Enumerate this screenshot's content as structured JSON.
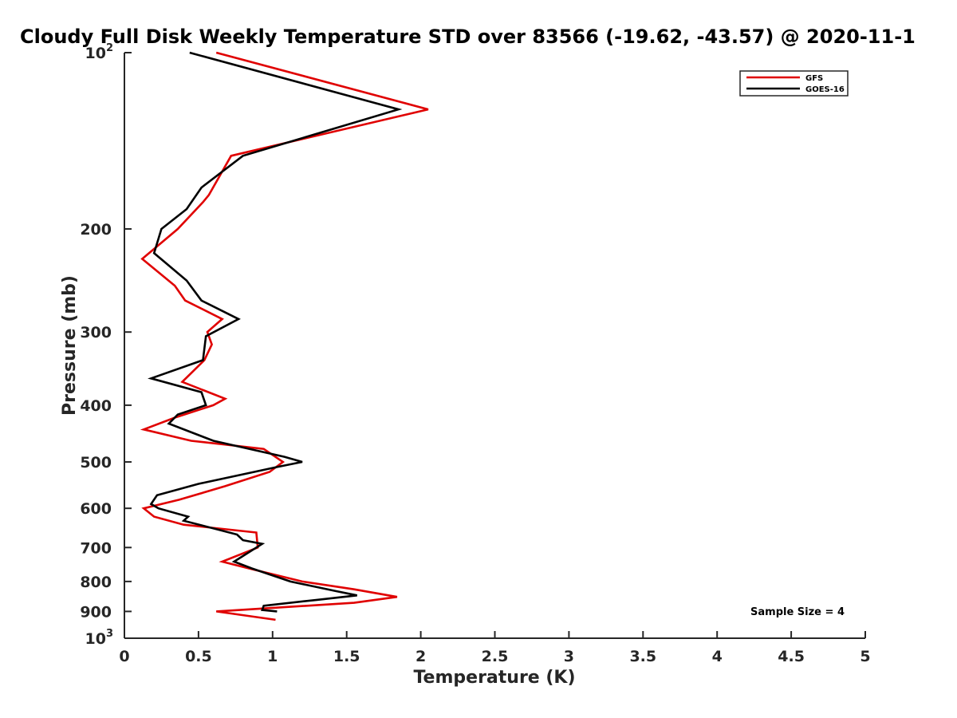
{
  "chart_data": {
    "type": "line",
    "title": "Cloudy Full Disk Weekly Temperature STD over 83566 (-19.62, -43.57) @ 2020-11-1",
    "xlabel": "Temperature (K)",
    "ylabel": "Pressure (mb)",
    "xlim": [
      0,
      5
    ],
    "ylim": [
      100,
      1000
    ],
    "y_scale": "log",
    "y_reversed": true,
    "grid": false,
    "legend_position": "top-right",
    "x_ticks": [
      "0",
      "0.5",
      "1",
      "1.5",
      "2",
      "2.5",
      "3",
      "3.5",
      "4",
      "4.5",
      "5"
    ],
    "y_ticks": [
      {
        "value": 100,
        "base": "10",
        "exp": "2"
      },
      {
        "value": 200,
        "label": "200"
      },
      {
        "value": 300,
        "label": "300"
      },
      {
        "value": 400,
        "label": "400"
      },
      {
        "value": 500,
        "label": "500"
      },
      {
        "value": 600,
        "label": "600"
      },
      {
        "value": 700,
        "label": "700"
      },
      {
        "value": 800,
        "label": "800"
      },
      {
        "value": 900,
        "label": "900"
      },
      {
        "value": 1000,
        "base": "10",
        "exp": "3"
      }
    ],
    "annotation": "Sample Size = 4",
    "series": [
      {
        "name": "GFS",
        "color": "#e00000",
        "points": [
          [
            0.62,
            100
          ],
          [
            2.05,
            125
          ],
          [
            0.72,
            150
          ],
          [
            0.57,
            175
          ],
          [
            0.53,
            180
          ],
          [
            0.36,
            200
          ],
          [
            0.12,
            225
          ],
          [
            0.34,
            250
          ],
          [
            0.41,
            265
          ],
          [
            0.66,
            285
          ],
          [
            0.56,
            300
          ],
          [
            0.59,
            315
          ],
          [
            0.54,
            335
          ],
          [
            0.39,
            365
          ],
          [
            0.68,
            390
          ],
          [
            0.6,
            400
          ],
          [
            0.34,
            420
          ],
          [
            0.13,
            440
          ],
          [
            0.45,
            460
          ],
          [
            0.94,
            475
          ],
          [
            1.07,
            500
          ],
          [
            0.98,
            520
          ],
          [
            0.68,
            550
          ],
          [
            0.37,
            580
          ],
          [
            0.13,
            600
          ],
          [
            0.2,
            620
          ],
          [
            0.4,
            640
          ],
          [
            0.89,
            660
          ],
          [
            0.9,
            700
          ],
          [
            0.66,
            740
          ],
          [
            0.84,
            760
          ],
          [
            1.2,
            800
          ],
          [
            1.55,
            825
          ],
          [
            1.84,
            850
          ],
          [
            1.55,
            870
          ],
          [
            0.62,
            900
          ],
          [
            1.02,
            930
          ]
        ]
      },
      {
        "name": "GOES-16",
        "color": "#000000",
        "points": [
          [
            0.44,
            100
          ],
          [
            1.85,
            125
          ],
          [
            0.8,
            150
          ],
          [
            0.52,
            170
          ],
          [
            0.42,
            185
          ],
          [
            0.25,
            200
          ],
          [
            0.2,
            220
          ],
          [
            0.42,
            245
          ],
          [
            0.52,
            265
          ],
          [
            0.77,
            285
          ],
          [
            0.55,
            305
          ],
          [
            0.53,
            335
          ],
          [
            0.18,
            360
          ],
          [
            0.52,
            380
          ],
          [
            0.55,
            400
          ],
          [
            0.36,
            415
          ],
          [
            0.3,
            430
          ],
          [
            0.6,
            460
          ],
          [
            1.08,
            490
          ],
          [
            1.2,
            500
          ],
          [
            1.03,
            510
          ],
          [
            0.5,
            545
          ],
          [
            0.22,
            570
          ],
          [
            0.18,
            590
          ],
          [
            0.23,
            600
          ],
          [
            0.43,
            620
          ],
          [
            0.4,
            630
          ],
          [
            0.76,
            665
          ],
          [
            0.8,
            680
          ],
          [
            0.93,
            690
          ],
          [
            0.74,
            740
          ],
          [
            0.86,
            760
          ],
          [
            1.12,
            800
          ],
          [
            1.42,
            830
          ],
          [
            1.57,
            845
          ],
          [
            1.3,
            860
          ],
          [
            0.94,
            880
          ],
          [
            0.93,
            895
          ],
          [
            1.03,
            900
          ]
        ]
      }
    ]
  }
}
